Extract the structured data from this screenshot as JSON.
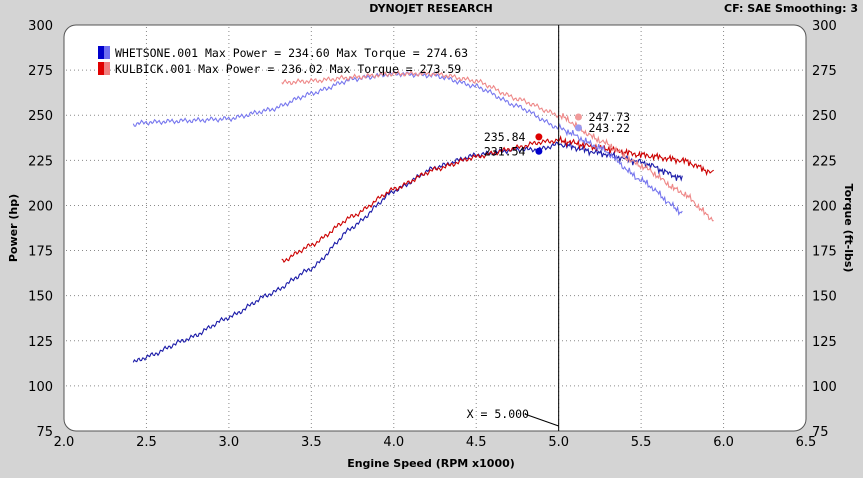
{
  "header": {
    "title": "DYNOJET RESEARCH",
    "settings": "CF: SAE  Smoothing: 3"
  },
  "chart_data": {
    "type": "line",
    "xlabel": "Engine Speed (RPM x1000)",
    "ylabel_left": "Power (hp)",
    "ylabel_right": "Torque (ft-lbs)",
    "xlim": [
      2.0,
      6.5
    ],
    "ylim": [
      75,
      300
    ],
    "x_ticks": [
      "2.0",
      "2.5",
      "3.0",
      "3.5",
      "4.0",
      "4.5",
      "5.0",
      "5.5",
      "6.0",
      "6.5"
    ],
    "y_ticks": [
      "75",
      "100",
      "125",
      "150",
      "175",
      "200",
      "225",
      "250",
      "275",
      "300"
    ],
    "grid": "dotted",
    "legend_position": "top-left",
    "legend": [
      {
        "text": "WHETSONE.001 Max Power = 234.60 Max Torque = 274.63",
        "color_dark": "#0000cc",
        "color_light": "#6f6ff0"
      },
      {
        "text": "KULBICK.001 Max Power = 236.02 Max Torque = 273.59",
        "color_dark": "#e00000",
        "color_light": "#f08080"
      }
    ],
    "cursor": {
      "x": 5.0,
      "label": "X = 5.000"
    },
    "readouts": [
      {
        "label": "247.73",
        "x": 5.12,
        "y": 249,
        "color": "#f09a9a"
      },
      {
        "label": "243.22",
        "x": 5.12,
        "y": 243,
        "color": "#9a9af0"
      },
      {
        "label": "235.84",
        "x": 4.88,
        "y": 238,
        "color": "#dd0000"
      },
      {
        "label": "231.54",
        "x": 4.88,
        "y": 230,
        "color": "#0000cc"
      }
    ],
    "series": [
      {
        "role": "power",
        "color": "#1a1aa8",
        "x": [
          2.42,
          2.5,
          2.75,
          3.0,
          3.25,
          3.5,
          3.75,
          4.0,
          4.25,
          4.5,
          4.75,
          4.88,
          5.0,
          5.25,
          5.5,
          5.75
        ],
        "y": [
          113,
          116,
          126,
          138,
          151,
          165,
          188,
          208,
          221,
          228,
          231,
          231,
          234,
          229,
          224,
          215
        ]
      },
      {
        "role": "power",
        "color": "#cc0000",
        "x": [
          3.32,
          3.5,
          3.75,
          4.0,
          4.25,
          4.5,
          4.75,
          4.88,
          5.0,
          5.25,
          5.5,
          5.75,
          5.94
        ],
        "y": [
          169,
          178,
          194,
          209,
          220,
          227,
          232,
          235,
          236,
          232,
          228,
          225,
          218
        ]
      },
      {
        "role": "torque",
        "color": "#7777ee",
        "x": [
          2.42,
          2.5,
          2.75,
          3.0,
          3.25,
          3.5,
          3.75,
          4.0,
          4.25,
          4.5,
          4.75,
          5.0,
          5.25,
          5.5,
          5.75
        ],
        "y": [
          245,
          246,
          247,
          248,
          253,
          262,
          270,
          273,
          272,
          266,
          255,
          243,
          232,
          214,
          196
        ]
      },
      {
        "role": "torque",
        "color": "#ee8888",
        "x": [
          3.32,
          3.5,
          3.75,
          4.0,
          4.25,
          4.5,
          4.75,
          5.0,
          5.25,
          5.5,
          5.75,
          5.94
        ],
        "y": [
          268,
          269,
          271,
          273,
          273,
          269,
          259,
          250,
          236,
          222,
          207,
          192
        ]
      }
    ]
  }
}
